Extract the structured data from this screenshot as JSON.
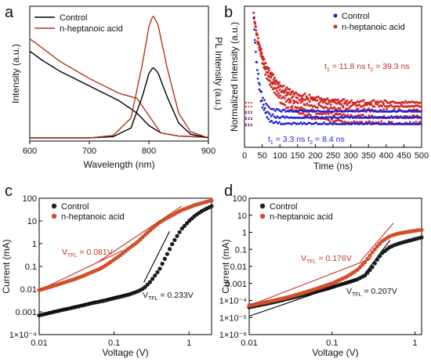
{
  "panels": {
    "a": {
      "label": "a"
    },
    "b": {
      "label": "b"
    },
    "c": {
      "label": "c"
    },
    "d": {
      "label": "d"
    }
  },
  "colors": {
    "control": "#000000",
    "heptanoic_line": "#b5341e",
    "ctrl_dot": "#1f23d6",
    "hept_dot": "#d32525",
    "hept_ball": "#d0502a",
    "fit_red": "#c1301e"
  },
  "chart_data": [
    {
      "panel": "a",
      "type": "line",
      "xlabel": "Wavelength (nm)",
      "ylabel_left": "Intensity (a.u.)",
      "ylabel_right": "PL Intensity (a.u.)",
      "xlim": [
        600,
        900
      ],
      "xticks": [
        "600",
        "700",
        "800",
        "900"
      ],
      "legend": {
        "position": "top-left",
        "entries": [
          "Control",
          "n-heptanoic acid"
        ]
      },
      "series": [
        {
          "name": "Control",
          "kind": "absorbance",
          "x": [
            600,
            620,
            650,
            700,
            750,
            780,
            800,
            820,
            850,
            900
          ],
          "y": [
            0.7,
            0.63,
            0.54,
            0.42,
            0.3,
            0.2,
            0.1,
            0.04,
            0.015,
            0.005
          ]
        },
        {
          "name": "n-heptanoic acid",
          "kind": "absorbance",
          "x": [
            600,
            620,
            650,
            700,
            750,
            780,
            800,
            820,
            850,
            900
          ],
          "y": [
            0.8,
            0.73,
            0.62,
            0.48,
            0.36,
            0.32,
            0.18,
            0.04,
            0.015,
            0.005
          ]
        },
        {
          "name": "Control",
          "kind": "PL",
          "x": [
            700,
            740,
            770,
            790,
            800,
            807,
            815,
            830,
            850,
            870,
            900
          ],
          "y": [
            0.0,
            0.01,
            0.08,
            0.35,
            0.52,
            0.57,
            0.53,
            0.34,
            0.12,
            0.03,
            0.0
          ]
        },
        {
          "name": "n-heptanoic acid",
          "kind": "PL",
          "x": [
            700,
            740,
            770,
            790,
            800,
            807,
            815,
            830,
            850,
            870,
            900
          ],
          "y": [
            0.0,
            0.02,
            0.16,
            0.62,
            0.9,
            0.99,
            0.92,
            0.58,
            0.2,
            0.05,
            0.0
          ]
        }
      ]
    },
    {
      "panel": "b",
      "type": "scatter",
      "xlabel": "Time (ns)",
      "ylabel": "Normalized Intensity (a.u.)",
      "xlim": [
        0,
        500
      ],
      "xticks": [
        "0",
        "50",
        "100",
        "150",
        "200",
        "250",
        "300",
        "350",
        "400",
        "450",
        "500"
      ],
      "legend": {
        "position": "top-right",
        "entries": [
          "Control",
          "n-heptanoic acid"
        ]
      },
      "series": [
        {
          "name": "Control",
          "t_peak": 25,
          "tau1_ns": 3.3,
          "tau2_ns": 8.4
        },
        {
          "name": "n-heptanoic acid",
          "t_peak": 25,
          "tau1_ns": 11.8,
          "tau2_ns": 39.3
        }
      ],
      "annotations": [
        {
          "text": "t",
          "sub1": "1",
          "mid": " =  11.8 ns  t",
          "sub2": "2",
          "end": " = 39.3  ns"
        },
        {
          "text": "t",
          "sub1": "1",
          "mid": " =  3.3 ns  t",
          "sub2": "2",
          "end": " = 8.4 ns"
        }
      ]
    },
    {
      "panel": "c",
      "type": "scatter",
      "xlabel": "Voltage (V)",
      "ylabel": "Current (mA)",
      "x_scale": "log",
      "y_scale": "log",
      "xlim": [
        0.01,
        2
      ],
      "ylim": [
        0.0001,
        100
      ],
      "xticks": [
        "0.01",
        "0.1",
        "1"
      ],
      "yticks": [
        "1×10⁻⁴",
        "0.001",
        "0.01",
        "0.1",
        "1",
        "10",
        "100"
      ],
      "legend": {
        "position": "top-left",
        "entries": [
          "Control",
          "n-heptanoic acid"
        ]
      },
      "series": [
        {
          "name": "Control",
          "x": [
            0.01,
            0.02,
            0.03,
            0.04,
            0.05,
            0.06,
            0.07,
            0.08,
            0.1,
            0.12,
            0.15,
            0.2,
            0.25,
            0.3,
            0.4,
            0.5,
            0.6,
            0.7,
            0.8,
            1.0,
            1.2,
            1.5,
            2.0
          ],
          "y": [
            0.0007,
            0.0012,
            0.0016,
            0.002,
            0.0024,
            0.0027,
            0.003,
            0.0033,
            0.004,
            0.0046,
            0.0055,
            0.0075,
            0.011,
            0.02,
            0.07,
            0.3,
            1.0,
            2.3,
            4.5,
            10,
            17,
            28,
            45
          ]
        },
        {
          "name": "n-heptanoic acid",
          "x": [
            0.01,
            0.02,
            0.03,
            0.04,
            0.05,
            0.06,
            0.07,
            0.08,
            0.1,
            0.12,
            0.15,
            0.2,
            0.25,
            0.3,
            0.4,
            0.5,
            0.6,
            0.7,
            0.8,
            1.0,
            1.2,
            1.5,
            2.0
          ],
          "y": [
            0.009,
            0.018,
            0.028,
            0.04,
            0.055,
            0.07,
            0.09,
            0.12,
            0.2,
            0.3,
            0.55,
            1.1,
            2.2,
            3.8,
            8.5,
            13,
            18,
            24,
            30,
            40,
            50,
            62,
            80
          ]
        }
      ],
      "annotations": [
        {
          "series": "n-heptanoic acid",
          "text": "V",
          "sub": "TFL",
          "value": " = 0.081V"
        },
        {
          "series": "Control",
          "text": "V",
          "sub": "TFL",
          "value": " = 0.233V"
        }
      ]
    },
    {
      "panel": "d",
      "type": "scatter",
      "xlabel": "Voltage (V)",
      "ylabel": "Current (mA)",
      "x_scale": "log",
      "y_scale": "log",
      "xlim": [
        0.01,
        1.2
      ],
      "ylim": [
        1e-06,
        100
      ],
      "xticks": [
        "0.01",
        "0.1",
        "1"
      ],
      "yticks": [
        "1×10⁻⁶",
        "1×10⁻⁵",
        "1×10⁻⁴",
        "0.001",
        "0.01",
        "0.1",
        "1",
        "10",
        "100"
      ],
      "legend": {
        "position": "top-left",
        "entries": [
          "Control",
          "n-heptanoic acid"
        ]
      },
      "series": [
        {
          "name": "Control",
          "x": [
            0.01,
            0.02,
            0.03,
            0.04,
            0.05,
            0.06,
            0.07,
            0.08,
            0.1,
            0.12,
            0.15,
            0.2,
            0.25,
            0.3,
            0.35,
            0.4,
            0.5,
            0.6,
            0.7,
            0.8,
            1.0,
            1.2
          ],
          "y": [
            4e-05,
            8e-05,
            0.00013,
            0.00018,
            0.00024,
            0.0003,
            0.00037,
            0.00044,
            0.0006,
            0.0008,
            0.0011,
            0.0017,
            0.003,
            0.008,
            0.025,
            0.06,
            0.14,
            0.2,
            0.25,
            0.3,
            0.4,
            0.5
          ]
        },
        {
          "name": "n-heptanoic acid",
          "x": [
            0.01,
            0.02,
            0.03,
            0.04,
            0.05,
            0.06,
            0.07,
            0.08,
            0.1,
            0.12,
            0.15,
            0.2,
            0.25,
            0.3,
            0.35,
            0.4,
            0.5,
            0.6,
            0.7,
            0.8,
            1.0,
            1.2
          ],
          "y": [
            5e-05,
            0.0001,
            0.00016,
            0.00024,
            0.00033,
            0.00044,
            0.00056,
            0.0007,
            0.001,
            0.0015,
            0.0025,
            0.006,
            0.018,
            0.06,
            0.15,
            0.3,
            0.6,
            0.8,
            0.95,
            1.05,
            1.25,
            1.4
          ]
        }
      ],
      "annotations": [
        {
          "series": "n-heptanoic acid",
          "text": "V",
          "sub": "TFL",
          "value": " = 0.176V"
        },
        {
          "series": "Control",
          "text": "V",
          "sub": "TFL",
          "value": " = 0.207V"
        }
      ]
    }
  ]
}
